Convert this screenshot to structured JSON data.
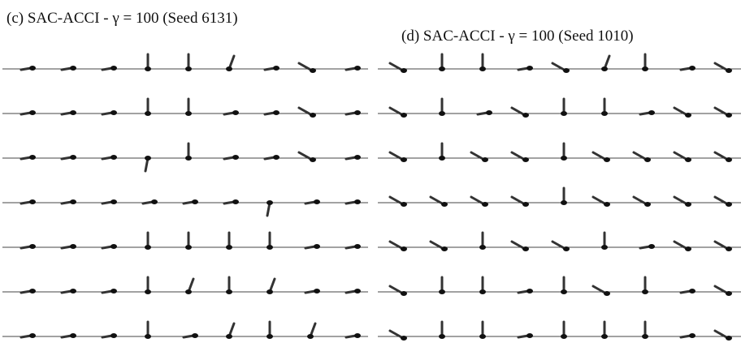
{
  "captions": [
    "(c) SAC-ACCI - γ = 100 (Seed 6131)",
    "(d) SAC-ACCI - γ = 100 (Seed 1010)"
  ]
}
